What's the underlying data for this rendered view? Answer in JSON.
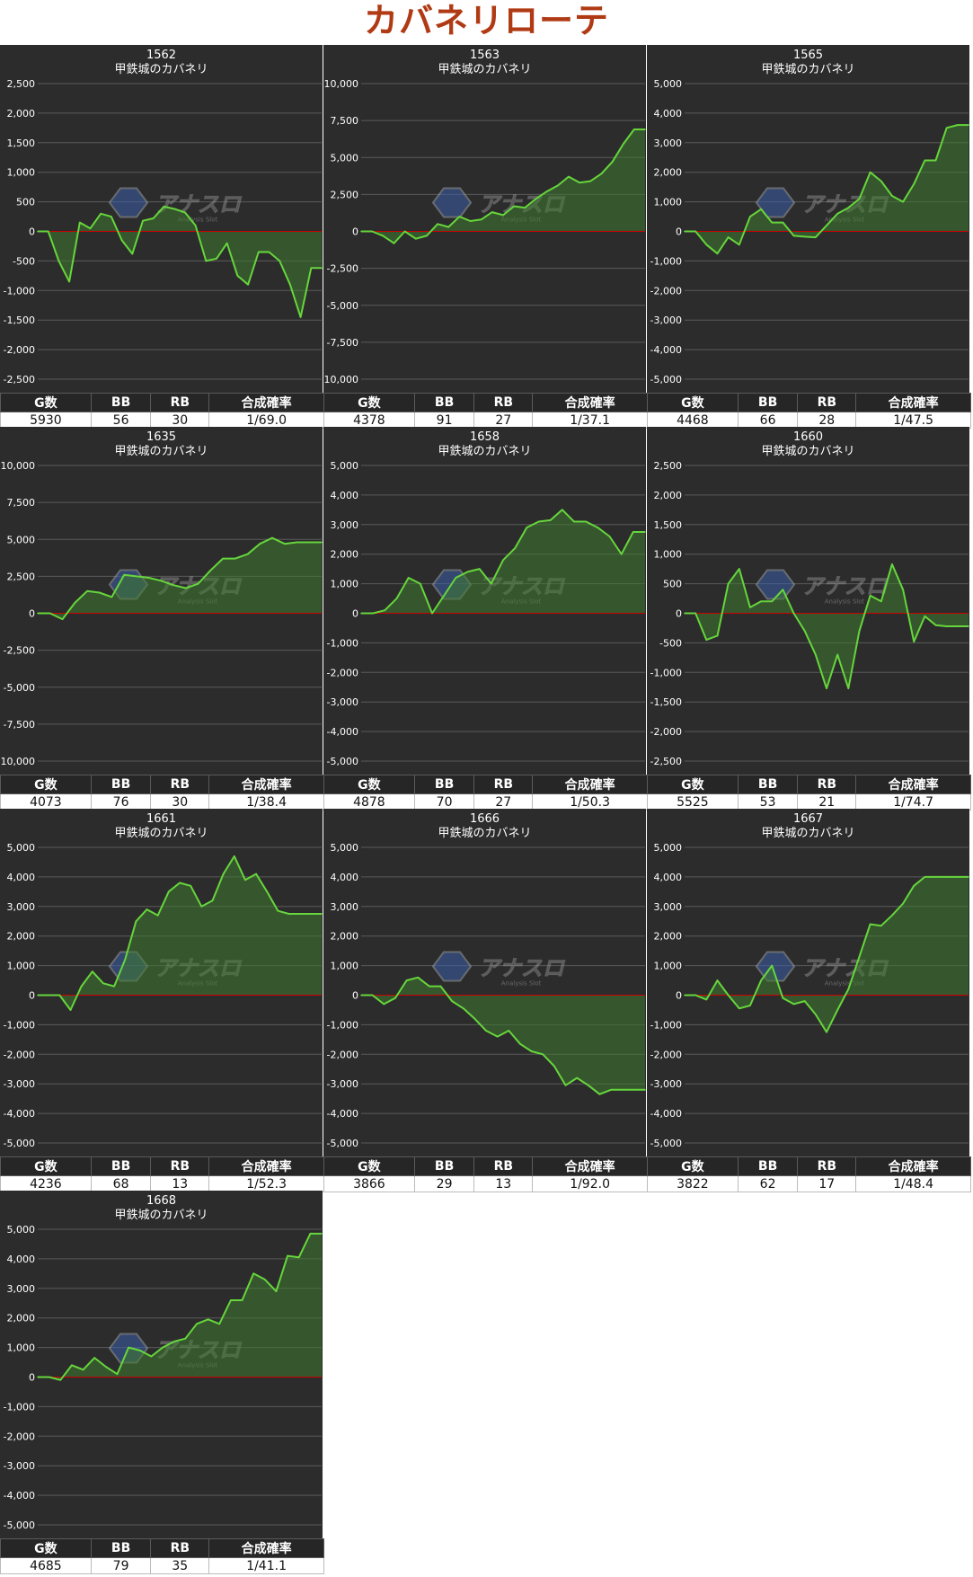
{
  "page": {
    "title": "カバネリローテ"
  },
  "colors": {
    "line": "#66d63c",
    "fill": "#3f7a2f",
    "zero": "#cc0000",
    "grid": "#5a5a5a",
    "background": "#2c2c2c"
  },
  "watermark": {
    "main": "アナスロ",
    "sub": "Analysis Slot"
  },
  "table_headers": [
    "G数",
    "BB",
    "RB",
    "合成確率"
  ],
  "chart_data": [
    {
      "type": "area",
      "id": "1562",
      "title": "1562",
      "subtitle": "甲鉄城のカバネリ",
      "ylim": [
        -2500,
        2500
      ],
      "yticks": [
        2500,
        2000,
        1500,
        1000,
        500,
        0,
        -500,
        -1000,
        -1500,
        -2000,
        -2500
      ],
      "values": [
        0,
        0,
        -500,
        -850,
        150,
        50,
        300,
        250,
        -150,
        -380,
        180,
        220,
        420,
        380,
        320,
        100,
        -500,
        -460,
        -200,
        -750,
        -900,
        -350,
        -350,
        -500,
        -900,
        -1450,
        -620,
        -620
      ],
      "stats": {
        "games": "5930",
        "bb": "56",
        "rb": "30",
        "rate": "1/69.0"
      }
    },
    {
      "type": "area",
      "id": "1563",
      "title": "1563",
      "subtitle": "甲鉄城のカバネリ",
      "ylim": [
        -10000,
        10000
      ],
      "yticks": [
        10000,
        7500,
        5000,
        2500,
        0,
        -2500,
        -5000,
        -7500,
        -10000
      ],
      "values": [
        0,
        0,
        -300,
        -800,
        0,
        -500,
        -300,
        500,
        300,
        1000,
        700,
        800,
        1300,
        1100,
        1700,
        1600,
        2200,
        2700,
        3100,
        3700,
        3300,
        3400,
        3900,
        4700,
        5900,
        6900,
        6900
      ],
      "stats": {
        "games": "4378",
        "bb": "91",
        "rb": "27",
        "rate": "1/37.1"
      }
    },
    {
      "type": "area",
      "id": "1565",
      "title": "1565",
      "subtitle": "甲鉄城のカバネリ",
      "ylim": [
        -5000,
        5000
      ],
      "yticks": [
        5000,
        4000,
        3000,
        2000,
        1000,
        0,
        -1000,
        -2000,
        -3000,
        -4000,
        -5000
      ],
      "values": [
        0,
        0,
        -450,
        -750,
        -200,
        -450,
        500,
        750,
        300,
        300,
        -150,
        -180,
        -200,
        200,
        600,
        800,
        1100,
        2000,
        1700,
        1200,
        1000,
        1600,
        2400,
        2400,
        3500,
        3600,
        3600
      ],
      "stats": {
        "games": "4468",
        "bb": "66",
        "rb": "28",
        "rate": "1/47.5"
      }
    },
    {
      "type": "area",
      "id": "1635",
      "title": "1635",
      "subtitle": "甲鉄城のカバネリ",
      "ylim": [
        -10000,
        10000
      ],
      "yticks": [
        10000,
        7500,
        5000,
        2500,
        0,
        -2500,
        -5000,
        -7500,
        -10000
      ],
      "values": [
        0,
        0,
        -400,
        700,
        1500,
        1400,
        1100,
        2600,
        2500,
        2400,
        2200,
        1900,
        1700,
        2000,
        2900,
        3700,
        3700,
        4000,
        4700,
        5100,
        4700,
        4800,
        4800,
        4800
      ],
      "stats": {
        "games": "4073",
        "bb": "76",
        "rb": "30",
        "rate": "1/38.4"
      }
    },
    {
      "type": "area",
      "id": "1658",
      "title": "1658",
      "subtitle": "甲鉄城のカバネリ",
      "ylim": [
        -5000,
        5000
      ],
      "yticks": [
        5000,
        4000,
        3000,
        2000,
        1000,
        0,
        -1000,
        -2000,
        -3000,
        -4000,
        -5000
      ],
      "values": [
        0,
        0,
        100,
        500,
        1200,
        1000,
        0,
        600,
        1200,
        1400,
        1500,
        1000,
        1800,
        2200,
        2900,
        3100,
        3150,
        3500,
        3100,
        3100,
        2900,
        2600,
        2000,
        2750,
        2750
      ],
      "stats": {
        "games": "4878",
        "bb": "70",
        "rb": "27",
        "rate": "1/50.3"
      }
    },
    {
      "type": "area",
      "id": "1660",
      "title": "1660",
      "subtitle": "甲鉄城のカバネリ",
      "ylim": [
        -2500,
        2500
      ],
      "yticks": [
        2500,
        2000,
        1500,
        1000,
        500,
        0,
        -500,
        -1000,
        -1500,
        -2000,
        -2500
      ],
      "values": [
        0,
        0,
        -450,
        -380,
        500,
        750,
        100,
        200,
        200,
        400,
        0,
        -300,
        -700,
        -1270,
        -700,
        -1270,
        -300,
        300,
        200,
        830,
        400,
        -480,
        -50,
        -200,
        -220,
        -220,
        -220
      ],
      "stats": {
        "games": "5525",
        "bb": "53",
        "rb": "21",
        "rate": "1/74.7"
      }
    },
    {
      "type": "area",
      "id": "1661",
      "title": "1661",
      "subtitle": "甲鉄城のカバネリ",
      "ylim": [
        -5000,
        5000
      ],
      "yticks": [
        5000,
        4000,
        3000,
        2000,
        1000,
        0,
        -1000,
        -2000,
        -3000,
        -4000,
        -5000
      ],
      "values": [
        0,
        0,
        0,
        -500,
        300,
        800,
        400,
        300,
        1200,
        2500,
        2900,
        2700,
        3500,
        3800,
        3700,
        3000,
        3200,
        4100,
        4700,
        3900,
        4100,
        3500,
        2850,
        2750,
        2750,
        2750,
        2750
      ],
      "stats": {
        "games": "4236",
        "bb": "68",
        "rb": "13",
        "rate": "1/52.3"
      }
    },
    {
      "type": "area",
      "id": "1666",
      "title": "1666",
      "subtitle": "甲鉄城のカバネリ",
      "ylim": [
        -5000,
        5000
      ],
      "yticks": [
        5000,
        4000,
        3000,
        2000,
        1000,
        0,
        -1000,
        -2000,
        -3000,
        -4000,
        -5000
      ],
      "values": [
        0,
        0,
        -300,
        -100,
        500,
        600,
        300,
        300,
        -200,
        -450,
        -800,
        -1200,
        -1400,
        -1200,
        -1650,
        -1900,
        -2000,
        -2400,
        -3050,
        -2800,
        -3050,
        -3350,
        -3200,
        -3200,
        -3200,
        -3200
      ],
      "stats": {
        "games": "3866",
        "bb": "29",
        "rb": "13",
        "rate": "1/92.0"
      }
    },
    {
      "type": "area",
      "id": "1667",
      "title": "1667",
      "subtitle": "甲鉄城のカバネリ",
      "ylim": [
        -5000,
        5000
      ],
      "yticks": [
        5000,
        4000,
        3000,
        2000,
        1000,
        0,
        -1000,
        -2000,
        -3000,
        -4000,
        -5000
      ],
      "values": [
        0,
        0,
        -150,
        500,
        0,
        -450,
        -350,
        500,
        1000,
        -100,
        -300,
        -200,
        -650,
        -1250,
        -500,
        200,
        1300,
        2400,
        2350,
        2700,
        3100,
        3700,
        4000,
        4000,
        4000,
        4000,
        4000
      ],
      "stats": {
        "games": "3822",
        "bb": "62",
        "rb": "17",
        "rate": "1/48.4"
      }
    },
    {
      "type": "area",
      "id": "1668",
      "title": "1668",
      "subtitle": "甲鉄城のカバネリ",
      "ylim": [
        -5000,
        5000
      ],
      "yticks": [
        5000,
        4000,
        3000,
        2000,
        1000,
        0,
        -1000,
        -2000,
        -3000,
        -4000,
        -5000
      ],
      "values": [
        0,
        0,
        -100,
        400,
        250,
        650,
        350,
        100,
        1000,
        900,
        700,
        1000,
        1200,
        1300,
        1800,
        1950,
        1800,
        2600,
        2600,
        3500,
        3300,
        2900,
        4100,
        4050,
        4850,
        4850
      ],
      "stats": {
        "games": "4685",
        "bb": "79",
        "rb": "35",
        "rate": "1/41.1"
      }
    }
  ]
}
